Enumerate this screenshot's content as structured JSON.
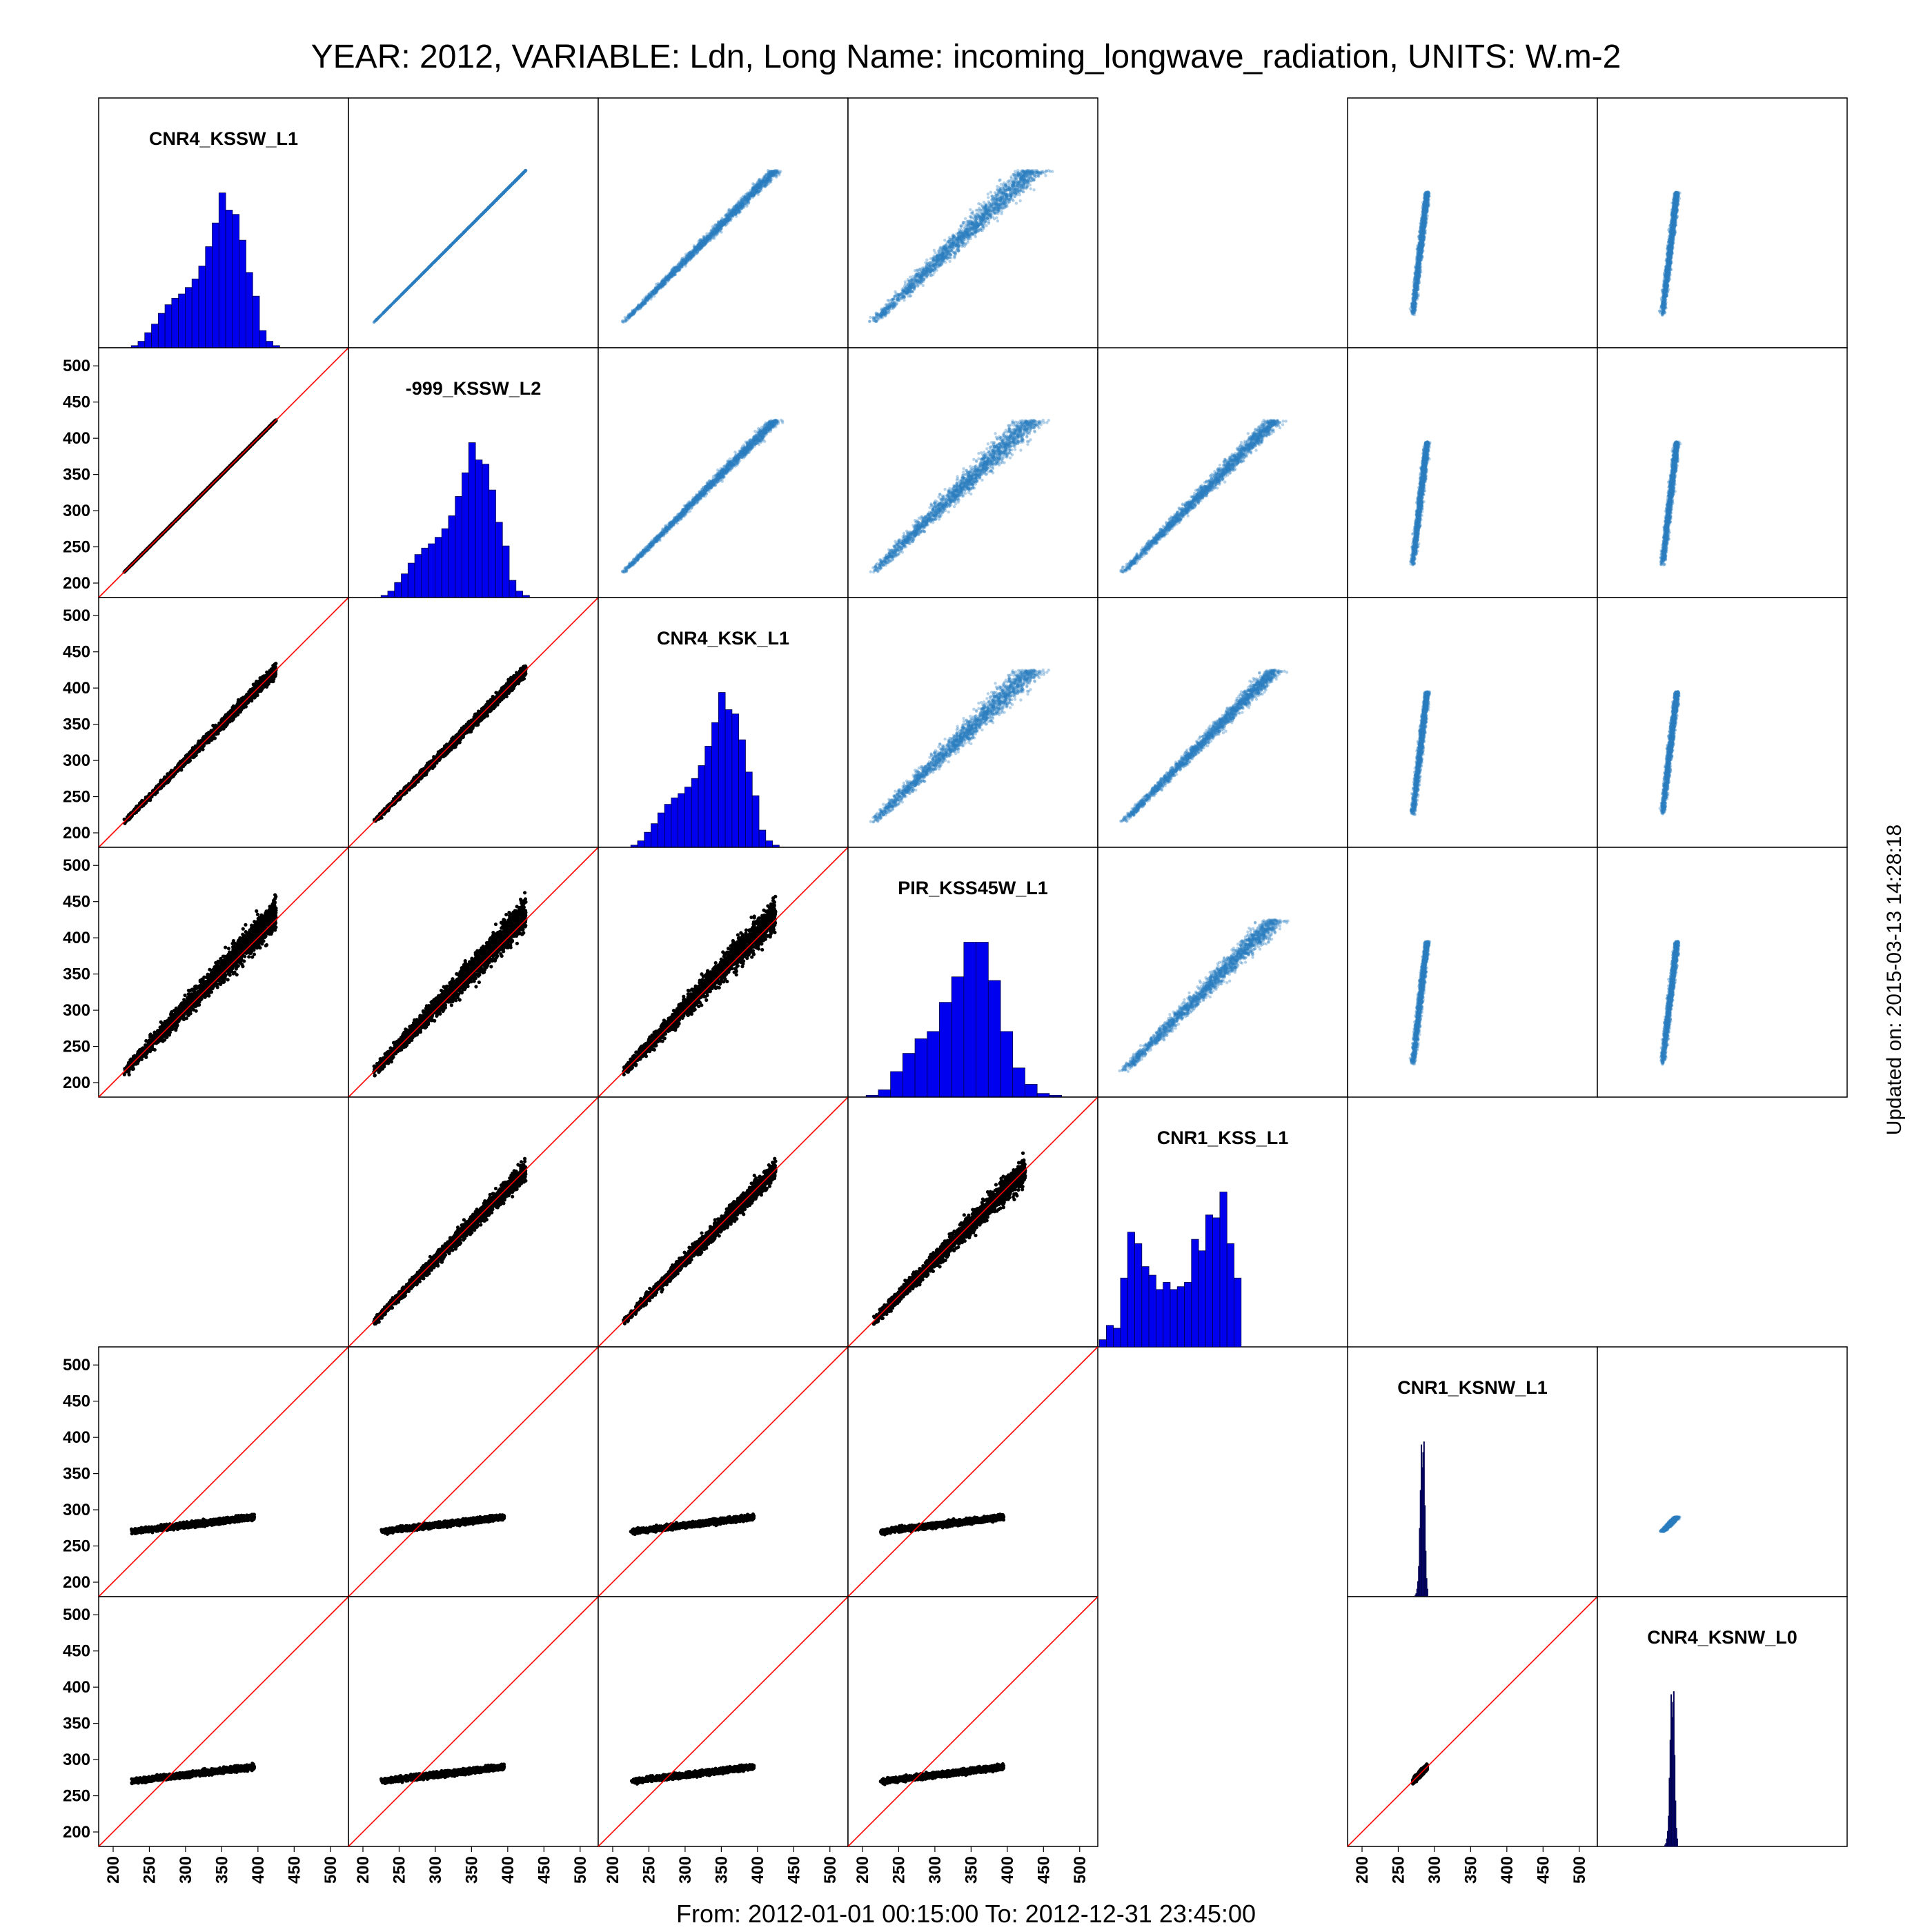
{
  "title": "YEAR: 2012, VARIABLE: Ldn, Long Name: incoming_longwave_radiation, UNITS: W.m-2",
  "footer": "From: 2012-01-01 00:15:00 To: 2012-12-31 23:45:00",
  "updated": "Updated on: 2015-03-13 14:28:18",
  "colors": {
    "histogram_fill": "#0000ee",
    "histogram_fill_dark": "#0a0a8c",
    "scatter_lower": "#000000",
    "scatter_upper": "#2a7fbf",
    "scatter_dense": "#083d78",
    "identity_line": "#ff0000"
  },
  "chart_data": {
    "type": "scatter",
    "subtype": "scatter-matrix",
    "axis_range": [
      180,
      525
    ],
    "ticks": [
      200,
      250,
      300,
      350,
      400,
      450,
      500
    ],
    "tick_labels": [
      "200",
      "250",
      "300",
      "350",
      "400",
      "450",
      "500"
    ],
    "variables": [
      "CNR4_KSSW_L1",
      "-999_KSSW_L2",
      "CNR4_KSK_L1",
      "PIR_KSS45W_L1",
      "CNR1_KSS_L1",
      "CNR1_KSNW_L1",
      "CNR4_KSNW_L0"
    ],
    "empty_pairs": [
      [
        0,
        4
      ],
      [
        4,
        0
      ],
      [
        4,
        5
      ],
      [
        4,
        6
      ],
      [
        5,
        4
      ],
      [
        6,
        4
      ]
    ],
    "scatter_ranges": [
      {
        "rows": [
          0,
          1,
          2,
          3
        ],
        "cols": [
          0,
          1,
          2,
          3
        ],
        "x_range": [
          215,
          430
        ],
        "spread": "per-pair"
      },
      {
        "rows": [
          5,
          6
        ],
        "cols": [
          0,
          1,
          2,
          3
        ],
        "x_range": [
          225,
          395
        ],
        "y_range": [
          270,
          290
        ]
      },
      {
        "rows": [
          5,
          6
        ],
        "cols": [
          5,
          6
        ],
        "x_range": [
          270,
          290
        ],
        "y_range": [
          270,
          290
        ]
      }
    ],
    "histograms": [
      {
        "name": "CNR4_KSSW_L1",
        "counts": [
          1,
          3,
          7,
          11,
          16,
          20,
          23,
          25,
          28,
          32,
          38,
          47,
          58,
          72,
          64,
          62,
          50,
          35,
          24,
          8,
          3,
          1
        ]
      },
      {
        "name": "-999_KSSW_L2",
        "counts": [
          1,
          3,
          7,
          11,
          16,
          20,
          23,
          25,
          28,
          32,
          38,
          47,
          58,
          72,
          64,
          62,
          50,
          35,
          24,
          8,
          3,
          1
        ]
      },
      {
        "name": "CNR4_KSK_L1",
        "counts": [
          1,
          3,
          7,
          11,
          16,
          20,
          23,
          25,
          28,
          32,
          38,
          47,
          58,
          72,
          64,
          62,
          50,
          35,
          24,
          8,
          3,
          1
        ]
      },
      {
        "name": "PIR_KSS45W_L1",
        "counts": [
          1,
          4,
          14,
          24,
          32,
          36,
          52,
          66,
          85,
          85,
          64,
          36,
          16,
          7,
          2,
          1
        ]
      },
      {
        "name": "CNR1_KSS_L1",
        "counts": [
          5,
          15,
          13,
          48,
          80,
          72,
          56,
          50,
          40,
          45,
          40,
          42,
          45,
          75,
          67,
          92,
          90,
          108,
          72,
          48
        ]
      },
      {
        "name": "CNR1_KSNW_L1",
        "counts": [
          1,
          2,
          5,
          10,
          20,
          45,
          70,
          100,
          85,
          95,
          102,
          60,
          30,
          12,
          5
        ]
      },
      {
        "name": "CNR4_KSNW_L0",
        "counts": [
          1,
          2,
          5,
          10,
          20,
          45,
          70,
          100,
          85,
          95,
          102,
          60,
          30,
          12,
          5
        ]
      }
    ]
  }
}
